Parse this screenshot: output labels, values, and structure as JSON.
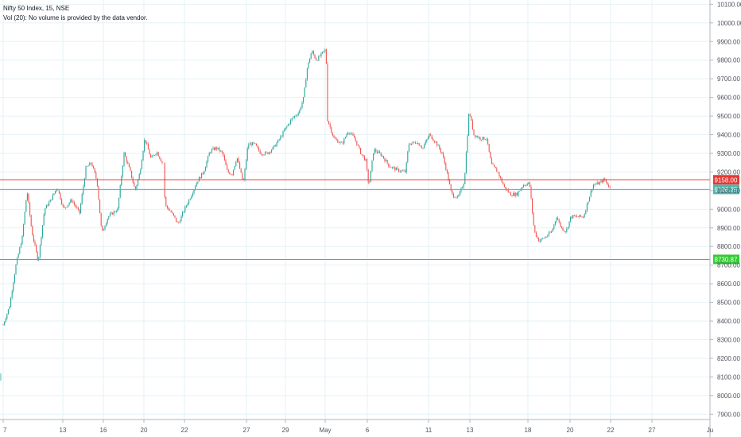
{
  "legend": {
    "symbol_line": "Nifty 50 Index, 15, NSE",
    "volume_line": "Vol (20): No volume is provided by the data vendor."
  },
  "colors": {
    "up": "#26a69a",
    "down": "#ef5350",
    "grid": "#e6f2f6",
    "axis_text": "#50535e",
    "resistance": "#e53935",
    "middle": "#4db6ac",
    "support": "#33cc33"
  },
  "chart_data": {
    "type": "candlestick",
    "yaxis": {
      "ticks": [
        "10100.00",
        "10000.00",
        "9900.00",
        "9800.00",
        "9700.00",
        "9600.00",
        "9500.00",
        "9400.00",
        "9300.00",
        "9200.00",
        "9100.00",
        "9000.00",
        "8900.00",
        "8800.00",
        "8700.00",
        "8600.00",
        "8500.00",
        "8400.00",
        "8300.00",
        "8200.00",
        "8100.00",
        "8000.00",
        "7900.00"
      ],
      "range": [
        7880,
        10110
      ]
    },
    "xaxis": {
      "ticks": [
        "7",
        "13",
        "16",
        "20",
        "22",
        "27",
        "29",
        "May",
        "6",
        "11",
        "13",
        "18",
        "20",
        "22",
        "27",
        "Ju"
      ]
    },
    "horizontal_lines": [
      {
        "label": "9158.00",
        "value": 9158.0,
        "color": "#e53935"
      },
      {
        "label": "9106.25",
        "value": 9106.25,
        "color": "#4db6ac"
      },
      {
        "label": "8730.87",
        "value": 8730.87,
        "color": "#33cc33"
      }
    ],
    "price_path": [
      {
        "x": 0,
        "v": 8100
      },
      {
        "x": 4,
        "v": 8380
      },
      {
        "x": 12,
        "v": 8480
      },
      {
        "x": 20,
        "v": 8700
      },
      {
        "x": 28,
        "v": 8850
      },
      {
        "x": 34,
        "v": 9100
      },
      {
        "x": 40,
        "v": 8880
      },
      {
        "x": 48,
        "v": 8720
      },
      {
        "x": 56,
        "v": 9000
      },
      {
        "x": 64,
        "v": 9050
      },
      {
        "x": 72,
        "v": 9120
      },
      {
        "x": 80,
        "v": 9000
      },
      {
        "x": 90,
        "v": 9050
      },
      {
        "x": 100,
        "v": 8980
      },
      {
        "x": 108,
        "v": 9220
      },
      {
        "x": 115,
        "v": 9250
      },
      {
        "x": 122,
        "v": 9150
      },
      {
        "x": 128,
        "v": 8870
      },
      {
        "x": 136,
        "v": 8960
      },
      {
        "x": 148,
        "v": 9000
      },
      {
        "x": 156,
        "v": 9300
      },
      {
        "x": 164,
        "v": 9200
      },
      {
        "x": 170,
        "v": 9100
      },
      {
        "x": 176,
        "v": 9200
      },
      {
        "x": 182,
        "v": 9380
      },
      {
        "x": 190,
        "v": 9270
      },
      {
        "x": 197,
        "v": 9310
      },
      {
        "x": 204,
        "v": 9250
      },
      {
        "x": 208,
        "v": 9020
      },
      {
        "x": 216,
        "v": 8980
      },
      {
        "x": 224,
        "v": 8920
      },
      {
        "x": 232,
        "v": 9000
      },
      {
        "x": 240,
        "v": 9070
      },
      {
        "x": 248,
        "v": 9150
      },
      {
        "x": 256,
        "v": 9200
      },
      {
        "x": 264,
        "v": 9310
      },
      {
        "x": 272,
        "v": 9330
      },
      {
        "x": 280,
        "v": 9300
      },
      {
        "x": 286,
        "v": 9200
      },
      {
        "x": 292,
        "v": 9190
      },
      {
        "x": 298,
        "v": 9280
      },
      {
        "x": 306,
        "v": 9140
      },
      {
        "x": 312,
        "v": 9350
      },
      {
        "x": 320,
        "v": 9350
      },
      {
        "x": 328,
        "v": 9300
      },
      {
        "x": 336,
        "v": 9300
      },
      {
        "x": 344,
        "v": 9330
      },
      {
        "x": 352,
        "v": 9380
      },
      {
        "x": 360,
        "v": 9440
      },
      {
        "x": 368,
        "v": 9490
      },
      {
        "x": 376,
        "v": 9520
      },
      {
        "x": 382,
        "v": 9600
      },
      {
        "x": 386,
        "v": 9750
      },
      {
        "x": 392,
        "v": 9850
      },
      {
        "x": 398,
        "v": 9800
      },
      {
        "x": 404,
        "v": 9830
      },
      {
        "x": 410,
        "v": 9860
      },
      {
        "x": 412,
        "v": 9480
      },
      {
        "x": 420,
        "v": 9380
      },
      {
        "x": 430,
        "v": 9350
      },
      {
        "x": 438,
        "v": 9420
      },
      {
        "x": 446,
        "v": 9380
      },
      {
        "x": 454,
        "v": 9300
      },
      {
        "x": 460,
        "v": 9260
      },
      {
        "x": 464,
        "v": 9120
      },
      {
        "x": 470,
        "v": 9320
      },
      {
        "x": 480,
        "v": 9290
      },
      {
        "x": 490,
        "v": 9230
      },
      {
        "x": 500,
        "v": 9210
      },
      {
        "x": 510,
        "v": 9200
      },
      {
        "x": 514,
        "v": 9350
      },
      {
        "x": 524,
        "v": 9360
      },
      {
        "x": 532,
        "v": 9330
      },
      {
        "x": 540,
        "v": 9400
      },
      {
        "x": 548,
        "v": 9360
      },
      {
        "x": 556,
        "v": 9300
      },
      {
        "x": 562,
        "v": 9200
      },
      {
        "x": 568,
        "v": 9080
      },
      {
        "x": 576,
        "v": 9060
      },
      {
        "x": 584,
        "v": 9150
      },
      {
        "x": 590,
        "v": 9530
      },
      {
        "x": 596,
        "v": 9400
      },
      {
        "x": 604,
        "v": 9380
      },
      {
        "x": 612,
        "v": 9380
      },
      {
        "x": 618,
        "v": 9240
      },
      {
        "x": 626,
        "v": 9200
      },
      {
        "x": 634,
        "v": 9120
      },
      {
        "x": 642,
        "v": 9080
      },
      {
        "x": 650,
        "v": 9080
      },
      {
        "x": 658,
        "v": 9130
      },
      {
        "x": 666,
        "v": 9140
      },
      {
        "x": 672,
        "v": 8880
      },
      {
        "x": 678,
        "v": 8830
      },
      {
        "x": 686,
        "v": 8850
      },
      {
        "x": 694,
        "v": 8880
      },
      {
        "x": 700,
        "v": 8960
      },
      {
        "x": 706,
        "v": 8900
      },
      {
        "x": 712,
        "v": 8880
      },
      {
        "x": 718,
        "v": 8960
      },
      {
        "x": 726,
        "v": 8960
      },
      {
        "x": 734,
        "v": 8960
      },
      {
        "x": 740,
        "v": 9050
      },
      {
        "x": 746,
        "v": 9130
      },
      {
        "x": 754,
        "v": 9140
      },
      {
        "x": 760,
        "v": 9160
      },
      {
        "x": 768,
        "v": 9110
      }
    ]
  }
}
